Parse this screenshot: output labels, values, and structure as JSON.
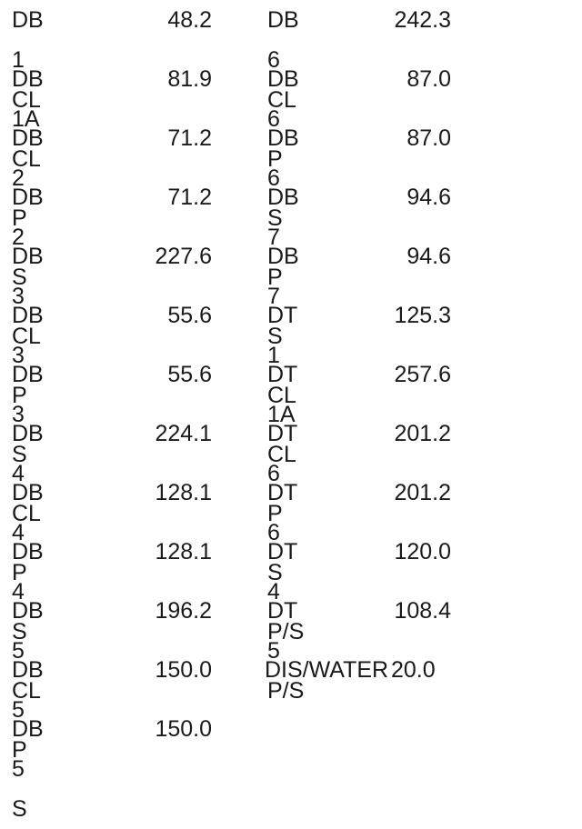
{
  "left_column": [
    {
      "label": "DB 1 CL",
      "value": "48.2"
    },
    {
      "label": "DB 1A CL",
      "value": "81.9"
    },
    {
      "label": "DB 2 P",
      "value": "71.2"
    },
    {
      "label": "DB 2 S",
      "value": "71.2"
    },
    {
      "label": "DB 3 CL",
      "value": "227.6"
    },
    {
      "label": "DB 3 P",
      "value": "55.6"
    },
    {
      "label": "DB 3 S",
      "value": "55.6"
    },
    {
      "label": "DB 4 CL",
      "value": "224.1"
    },
    {
      "label": "DB 4 P",
      "value": "128.1"
    },
    {
      "label": "DB 4 S",
      "value": "128.1"
    },
    {
      "label": "DB 5 CL",
      "value": "196.2"
    },
    {
      "label": "DB 5 P",
      "value": "150.0"
    },
    {
      "label": "DB 5 S",
      "value": "150.0"
    }
  ],
  "right_column": [
    {
      "label": "DB 6 CL",
      "value": "242.3"
    },
    {
      "label": "DB 6 P",
      "value": "87.0"
    },
    {
      "label": "DB 6 S",
      "value": "87.0"
    },
    {
      "label": "DB 7 P",
      "value": "94.6"
    },
    {
      "label": "DB 7 S",
      "value": "94.6"
    },
    {
      "label": "DT 1 CL",
      "value": "125.3"
    },
    {
      "label": "DT 1A CL",
      "value": "257.6"
    },
    {
      "label": "DT 6 P",
      "value": "201.2"
    },
    {
      "label": "DT 6 S",
      "value": "201.2"
    },
    {
      "label": "DT 4 P/S",
      "value": "120.0"
    },
    {
      "label": "DT 5 P/S",
      "value": "108.4"
    },
    {
      "label": "DIS/WATER",
      "value": "20.0"
    }
  ]
}
